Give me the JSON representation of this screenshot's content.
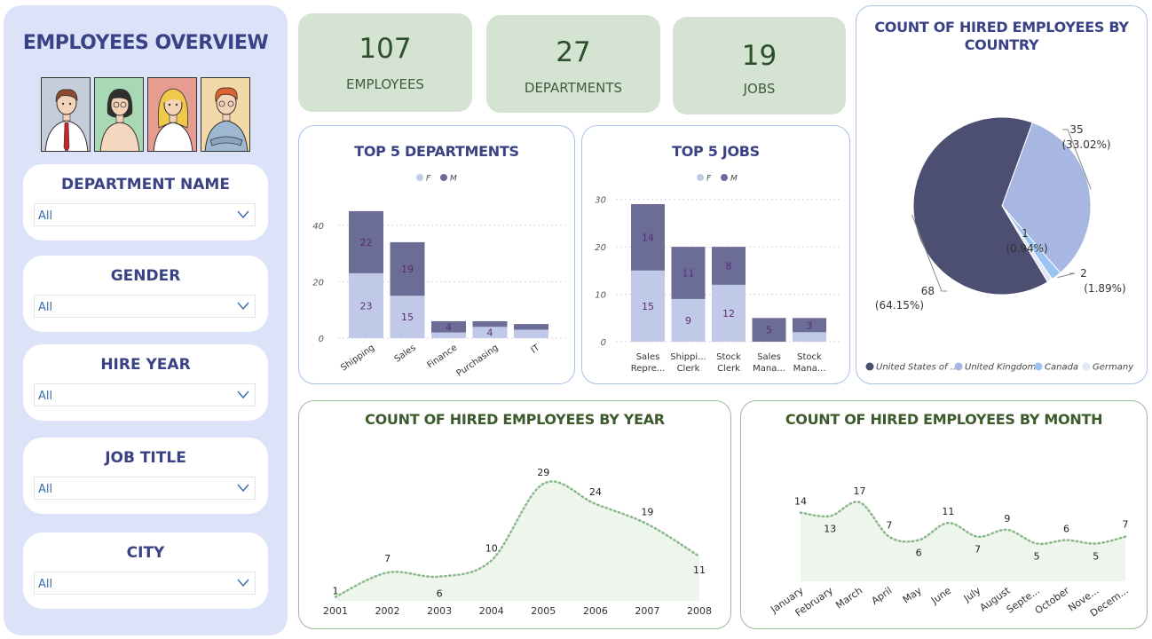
{
  "sidebar": {
    "title": "EMPLOYEES OVERVIEW",
    "slicers": [
      {
        "title": "DEPARTMENT NAME",
        "value": "All"
      },
      {
        "title": "GENDER",
        "value": "All"
      },
      {
        "title": "HIRE YEAR",
        "value": "All"
      },
      {
        "title": "JOB TITLE",
        "value": "All"
      },
      {
        "title": "CITY",
        "value": "All"
      }
    ]
  },
  "kpis": [
    {
      "value": "107",
      "label": "EMPLOYEES"
    },
    {
      "value": "27",
      "label": "DEPARTMENTS"
    },
    {
      "value": "19",
      "label": "JOBS"
    }
  ],
  "colors": {
    "female": "#c0c9e8",
    "male": "#6b6d96",
    "seg_label": "#5a2c78",
    "line": "#8ab88a",
    "area": "#eef5ec",
    "pie_us": "#4c4e72",
    "pie_uk": "#a8b7e2",
    "pie_ca": "#9cc4f2",
    "pie_de": "#e2e8f2"
  },
  "chart_data": [
    {
      "type": "bar",
      "title": "TOP 5 DEPARTMENTS",
      "legend": [
        "F",
        "M"
      ],
      "categories": [
        "Shipping",
        "Sales",
        "Finance",
        "Purchasing",
        "IT"
      ],
      "series": [
        {
          "name": "F",
          "values": [
            23,
            15,
            2,
            4,
            3
          ]
        },
        {
          "name": "M",
          "values": [
            22,
            19,
            4,
            2,
            2
          ]
        }
      ],
      "labels": {
        "F": [
          "23",
          "15",
          "",
          "4",
          ""
        ],
        "M": [
          "22",
          "19",
          "4",
          "",
          ""
        ]
      },
      "yticks": [
        "0",
        "20",
        "40"
      ],
      "ylim": [
        0,
        50
      ]
    },
    {
      "type": "bar",
      "title": "TOP 5 JOBS",
      "legend": [
        "F",
        "M"
      ],
      "categories": [
        [
          "Sales",
          "Repre..."
        ],
        [
          "Shippi...",
          "Clerk"
        ],
        [
          "Stock",
          "Clerk"
        ],
        [
          "Sales",
          "Mana..."
        ],
        [
          "Stock",
          "Mana..."
        ]
      ],
      "series": [
        {
          "name": "F",
          "values": [
            15,
            9,
            12,
            0,
            2
          ]
        },
        {
          "name": "M",
          "values": [
            14,
            11,
            8,
            5,
            3
          ]
        }
      ],
      "labels": {
        "F": [
          "15",
          "9",
          "12",
          "",
          ""
        ],
        "M": [
          "14",
          "11",
          "8",
          "5",
          "3"
        ]
      },
      "yticks": [
        "0",
        "10",
        "20",
        "30"
      ],
      "ylim": [
        0,
        32
      ]
    },
    {
      "type": "pie",
      "title": "COUNT OF HIRED EMPLOYEES BY COUNTRY",
      "slices": [
        {
          "name": "United States of ...",
          "value": 68,
          "label": "68",
          "pct": "(64.15%)"
        },
        {
          "name": "United Kingdom",
          "value": 35,
          "label": "35",
          "pct": "(33.02%)"
        },
        {
          "name": "Canada",
          "value": 2,
          "label": "2",
          "pct": "(1.89%)"
        },
        {
          "name": "Germany",
          "value": 1,
          "label": "1",
          "pct": "(0.94%)"
        }
      ]
    },
    {
      "type": "area",
      "title": "COUNT OF HIRED EMPLOYEES BY YEAR",
      "x": [
        "2001",
        "2002",
        "2003",
        "2004",
        "2005",
        "2006",
        "2007",
        "2008"
      ],
      "values": [
        1,
        7,
        6,
        10,
        29,
        24,
        19,
        11
      ]
    },
    {
      "type": "area",
      "title": "COUNT OF HIRED EMPLOYEES BY MONTH",
      "x": [
        "January",
        "February",
        "March",
        "April",
        "May",
        "June",
        "July",
        "August",
        "Septe...",
        "October",
        "Nove...",
        "Decem..."
      ],
      "values": [
        14,
        13,
        17,
        7,
        6,
        11,
        7,
        9,
        5,
        6,
        5,
        7
      ]
    }
  ]
}
